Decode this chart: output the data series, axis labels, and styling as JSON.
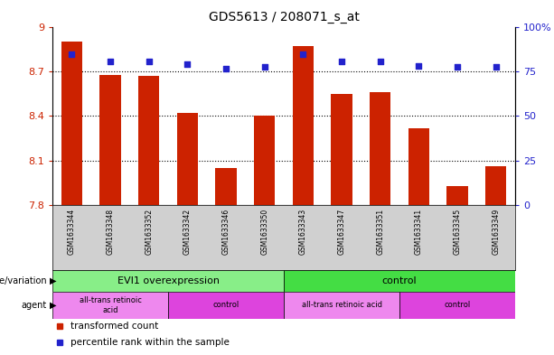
{
  "title": "GDS5613 / 208071_s_at",
  "samples": [
    "GSM1633344",
    "GSM1633348",
    "GSM1633352",
    "GSM1633342",
    "GSM1633346",
    "GSM1633350",
    "GSM1633343",
    "GSM1633347",
    "GSM1633351",
    "GSM1633341",
    "GSM1633345",
    "GSM1633349"
  ],
  "bar_values": [
    8.9,
    8.68,
    8.67,
    8.42,
    8.05,
    8.4,
    8.87,
    8.55,
    8.56,
    8.32,
    7.93,
    8.06
  ],
  "percentile_values": [
    8.82,
    8.77,
    8.77,
    8.75,
    8.72,
    8.73,
    8.82,
    8.77,
    8.77,
    8.74,
    8.73,
    8.73
  ],
  "ymin": 7.8,
  "ymax": 9.0,
  "yticks": [
    7.8,
    8.1,
    8.4,
    8.7,
    9.0
  ],
  "ytick_labels": [
    "7.8",
    "8.1",
    "8.4",
    "8.7",
    "9"
  ],
  "y2ticks": [
    0,
    25,
    50,
    75,
    100
  ],
  "y2tick_labels": [
    "0",
    "25",
    "50",
    "75",
    "100%"
  ],
  "bar_color": "#cc2200",
  "percentile_color": "#2222cc",
  "title_color": "#000000",
  "ylabel_color": "#cc2200",
  "y2label_color": "#2222cc",
  "genotype_groups": [
    {
      "label": "EVI1 overexpression",
      "start": 0,
      "end": 6,
      "color": "#88ee88"
    },
    {
      "label": "control",
      "start": 6,
      "end": 12,
      "color": "#44dd44"
    }
  ],
  "agent_groups": [
    {
      "label": "all-trans retinoic\nacid",
      "start": 0,
      "end": 3,
      "color": "#ee88ee"
    },
    {
      "label": "control",
      "start": 3,
      "end": 6,
      "color": "#dd44dd"
    },
    {
      "label": "all-trans retinoic acid",
      "start": 6,
      "end": 9,
      "color": "#ee88ee"
    },
    {
      "label": "control",
      "start": 9,
      "end": 12,
      "color": "#dd44dd"
    }
  ],
  "legend_items": [
    {
      "color": "#cc2200",
      "label": "transformed count"
    },
    {
      "color": "#2222cc",
      "label": "percentile rank within the sample"
    }
  ],
  "bar_width": 0.55,
  "plot_facecolor": "#ffffff",
  "fig_facecolor": "#ffffff",
  "sample_bg_color": "#d0d0d0"
}
